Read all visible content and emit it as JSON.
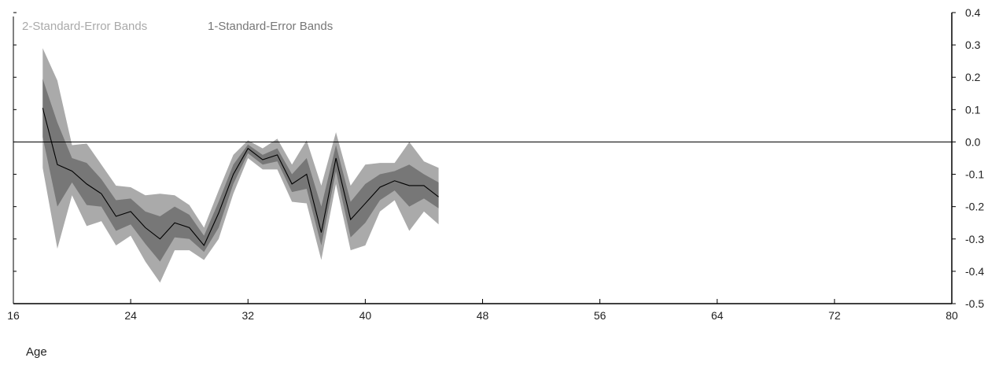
{
  "chart_data": {
    "type": "area",
    "xlabel": "Age",
    "ylabel": "",
    "xlim": [
      16,
      80
    ],
    "ylim": [
      -0.5,
      0.4
    ],
    "x_ticks": [
      16,
      24,
      32,
      40,
      48,
      56,
      64,
      72,
      80
    ],
    "y_ticks": [
      -0.5,
      -0.4,
      -0.3,
      -0.2,
      -0.1,
      0.0,
      0.1,
      0.2,
      0.3,
      0.4
    ],
    "y_tick_labels": [
      "-0.5",
      "-0.4",
      "-0.3",
      "-0.2",
      "-0.1",
      "0.0",
      "0.1",
      "0.2",
      "0.3",
      "0.4"
    ],
    "y_axis_side": "right",
    "reference_line_y": 0.0,
    "legend": {
      "position": "top-left",
      "entries": [
        {
          "label": "2-Standard-Error Bands",
          "color": "#aaaaaa"
        },
        {
          "label": "1-Standard-Error Bands",
          "color": "#777777"
        }
      ]
    },
    "colors": {
      "band2": "#aaaaaa",
      "band1": "#777777",
      "line": "#000000",
      "axis": "#000000"
    },
    "x": [
      18,
      19,
      20,
      21,
      22,
      23,
      24,
      25,
      26,
      27,
      28,
      29,
      30,
      31,
      32,
      33,
      34,
      35,
      36,
      37,
      38,
      39,
      40,
      41,
      42,
      43,
      44,
      45
    ],
    "series": [
      {
        "role": "estimate",
        "values": [
          0.105,
          -0.07,
          -0.09,
          -0.13,
          -0.16,
          -0.23,
          -0.215,
          -0.265,
          -0.3,
          -0.25,
          -0.265,
          -0.32,
          -0.22,
          -0.1,
          -0.02,
          -0.055,
          -0.04,
          -0.13,
          -0.1,
          -0.28,
          -0.05,
          -0.24,
          -0.19,
          -0.14,
          -0.12,
          -0.135,
          -0.135,
          -0.17
        ]
      },
      {
        "role": "upper_1se",
        "values": [
          0.195,
          0.06,
          -0.05,
          -0.065,
          -0.115,
          -0.18,
          -0.175,
          -0.215,
          -0.23,
          -0.2,
          -0.225,
          -0.29,
          -0.185,
          -0.07,
          -0.008,
          -0.04,
          -0.02,
          -0.1,
          -0.05,
          -0.2,
          -0.01,
          -0.185,
          -0.13,
          -0.1,
          -0.09,
          -0.07,
          -0.1,
          -0.125
        ]
      },
      {
        "role": "lower_1se",
        "values": [
          0.015,
          -0.2,
          -0.125,
          -0.195,
          -0.2,
          -0.275,
          -0.255,
          -0.315,
          -0.37,
          -0.295,
          -0.3,
          -0.34,
          -0.265,
          -0.13,
          -0.035,
          -0.07,
          -0.06,
          -0.155,
          -0.145,
          -0.32,
          -0.09,
          -0.295,
          -0.25,
          -0.18,
          -0.15,
          -0.2,
          -0.175,
          -0.205
        ]
      },
      {
        "role": "upper_2se",
        "values": [
          0.29,
          0.19,
          -0.01,
          -0.005,
          -0.07,
          -0.135,
          -0.14,
          -0.165,
          -0.16,
          -0.165,
          -0.195,
          -0.265,
          -0.15,
          -0.04,
          0.005,
          -0.02,
          0.01,
          -0.07,
          0.005,
          -0.135,
          0.03,
          -0.135,
          -0.07,
          -0.065,
          -0.065,
          0.0,
          -0.06,
          -0.08
        ]
      },
      {
        "role": "lower_2se",
        "values": [
          -0.08,
          -0.33,
          -0.165,
          -0.26,
          -0.245,
          -0.32,
          -0.29,
          -0.37,
          -0.435,
          -0.335,
          -0.335,
          -0.365,
          -0.3,
          -0.16,
          -0.05,
          -0.085,
          -0.085,
          -0.185,
          -0.19,
          -0.365,
          -0.13,
          -0.335,
          -0.32,
          -0.215,
          -0.18,
          -0.275,
          -0.215,
          -0.255
        ]
      }
    ]
  }
}
